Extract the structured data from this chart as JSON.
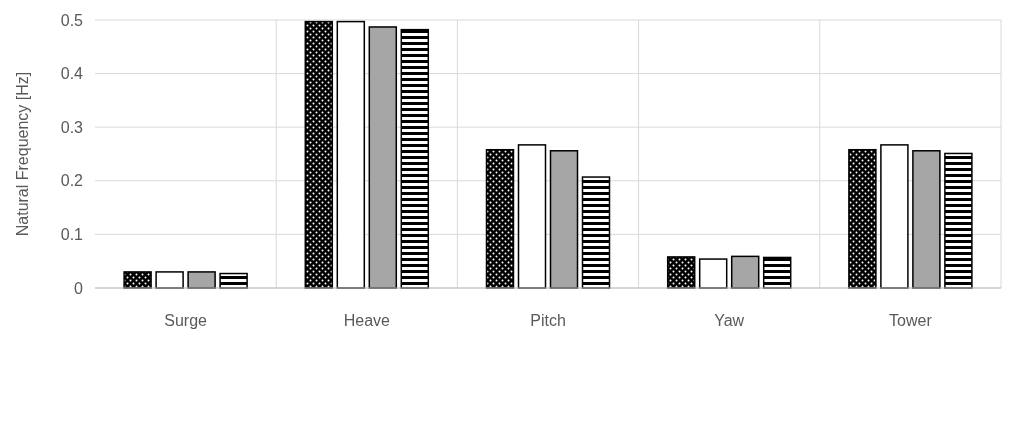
{
  "chart_data": {
    "type": "bar",
    "ylabel": "Natural Frequency [Hz]",
    "categories": [
      "Surge",
      "Heave",
      "Pitch",
      "Yaw",
      "Tower"
    ],
    "series": [
      {
        "color": "#000000",
        "values": [
          0.03,
          0.497,
          0.258,
          0.058,
          0.258
        ]
      },
      {
        "color": "#ffffff",
        "values": [
          0.03,
          0.497,
          0.267,
          0.054,
          0.267
        ]
      },
      {
        "color": "#a6a6a6",
        "values": [
          0.03,
          0.487,
          0.256,
          0.059,
          0.256
        ]
      },
      {
        "color": "#000000",
        "values": [
          0.027,
          0.482,
          0.207,
          0.057,
          0.251
        ]
      }
    ],
    "ylim": [
      0,
      0.5
    ],
    "yticks": [
      {
        "value": 0,
        "label": "0"
      },
      0.1,
      0.2,
      0.3,
      0.4,
      0.5
    ],
    "grid": true
  }
}
